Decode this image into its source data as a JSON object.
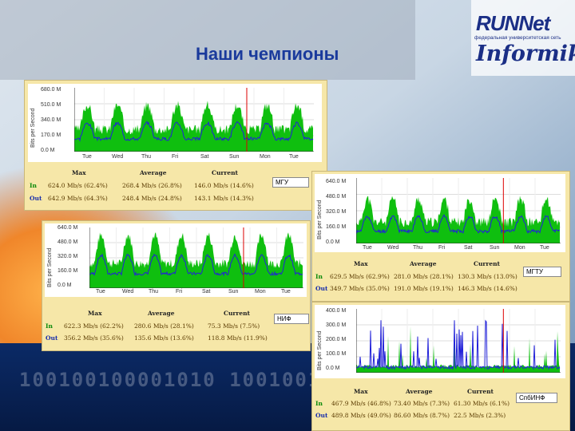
{
  "slide": {
    "title": "Наши чемпионы",
    "logo_line1": "RUNNet",
    "logo_subtitle": "федеральная университетская сеть",
    "logo_line2": "Informika",
    "bg_digits": "100100100001010 1001001 1001"
  },
  "colors": {
    "in": "#0fbf0f",
    "out": "#2121d9",
    "title": "#1a3a9c"
  },
  "panels": [
    {
      "ylabel": "Bits per Second",
      "ticks_y": [
        "680.0 M",
        "510.0 M",
        "340.0 M",
        "170.0 M",
        "0.0 M"
      ],
      "ticks_x": [
        "Tue",
        "Wed",
        "Thu",
        "Fri",
        "Sat",
        "Sun",
        "Mon",
        "Tue"
      ],
      "headers": [
        "Max",
        "Average",
        "Current"
      ],
      "in_label": "In",
      "out_label": "Out",
      "in_values": [
        "624.0 Mb/s (62.4%)",
        "268.4 Mb/s (26.8%)",
        "146.0 Mb/s (14.6%)"
      ],
      "out_values": [
        "642.9 Mb/s (64.3%)",
        "248.4 Mb/s (24.8%)",
        "143.1 Mb/s (14.3%)"
      ],
      "name": "МГУ"
    },
    {
      "ylabel": "Bits per Second",
      "ticks_y": [
        "640.0 M",
        "480.0 M",
        "320.0 M",
        "160.0 M",
        "0.0 M"
      ],
      "ticks_x": [
        "Tue",
        "Wed",
        "Thu",
        "Fri",
        "Sat",
        "Sun",
        "Mon",
        "Tue"
      ],
      "headers": [
        "Max",
        "Average",
        "Current"
      ],
      "in_label": "In",
      "out_label": "Out",
      "in_values": [
        "622.3 Mb/s (62.2%)",
        "280.6 Mb/s (28.1%)",
        "75.3 Mb/s (7.5%)"
      ],
      "out_values": [
        "356.2 Mb/s (35.6%)",
        "135.6 Mb/s (13.6%)",
        "118.8 Mb/s (11.9%)"
      ],
      "name": "НИФ"
    },
    {
      "ylabel": "Bits per Second",
      "ticks_y": [
        "640.0 M",
        "480.0 M",
        "320.0 M",
        "160.0 M",
        "0.0 M"
      ],
      "ticks_x": [
        "Tue",
        "Wed",
        "Thu",
        "Fri",
        "Sat",
        "Sun",
        "Mon",
        "Tue"
      ],
      "headers": [
        "Max",
        "Average",
        "Current"
      ],
      "in_label": "In",
      "out_label": "Out",
      "in_values": [
        "629.5 Mb/s (62.9%)",
        "281.0 Mb/s (28.1%)",
        "130.3 Mb/s (13.0%)"
      ],
      "out_values": [
        "349.7 Mb/s (35.0%)",
        "191.0 Mb/s (19.1%)",
        "146.3 Mb/s (14.6%)"
      ],
      "name": "МГТУ"
    },
    {
      "ylabel": "Bits per Second",
      "ticks_y": [
        "400.0 M",
        "300.0 M",
        "200.0 M",
        "100.0 M",
        "0.0 M"
      ],
      "ticks_x": [],
      "headers": [
        "Max",
        "Average",
        "Current"
      ],
      "in_label": "In",
      "out_label": "Out",
      "in_values": [
        "467.9 Mb/s (46.8%)",
        "73.40 Mb/s (7.3%)",
        "61.30 Mb/s (6.1%)"
      ],
      "out_values": [
        "489.8 Mb/s (49.0%)",
        "86.60 Mb/s (8.7%)",
        "22.5 Mb/s (2.3%)"
      ],
      "name": "СпбИНФ"
    }
  ]
}
